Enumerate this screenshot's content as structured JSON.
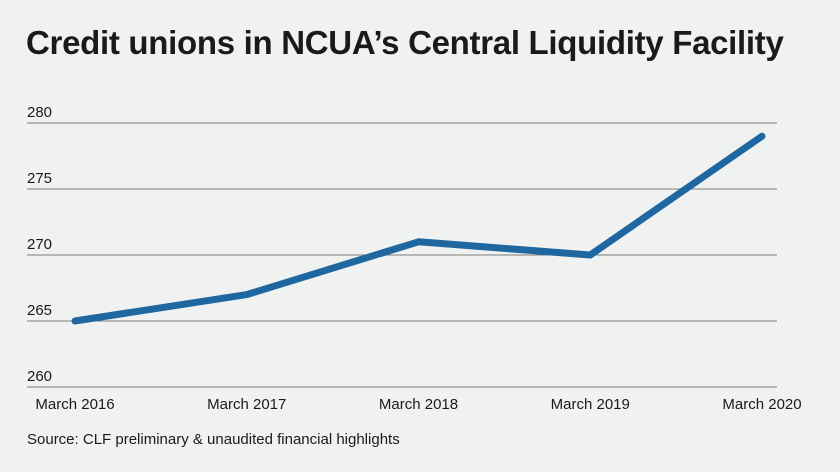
{
  "chart_data": {
    "type": "line",
    "title": "Credit unions in NCUA’s Central Liquidity Facility",
    "source": "Source: CLF preliminary & unaudited financial highlights",
    "categories": [
      "March 2016",
      "March 2017",
      "March 2018",
      "March 2019",
      "March 2020"
    ],
    "series": [
      {
        "name": "Credit unions",
        "values": [
          265,
          267,
          271,
          270,
          279
        ]
      }
    ],
    "yticks": [
      260,
      265,
      270,
      275,
      280
    ],
    "ylim": [
      260,
      280
    ],
    "xlabel": "",
    "ylabel": "",
    "grid": true,
    "line_color": "#1f67a0"
  }
}
